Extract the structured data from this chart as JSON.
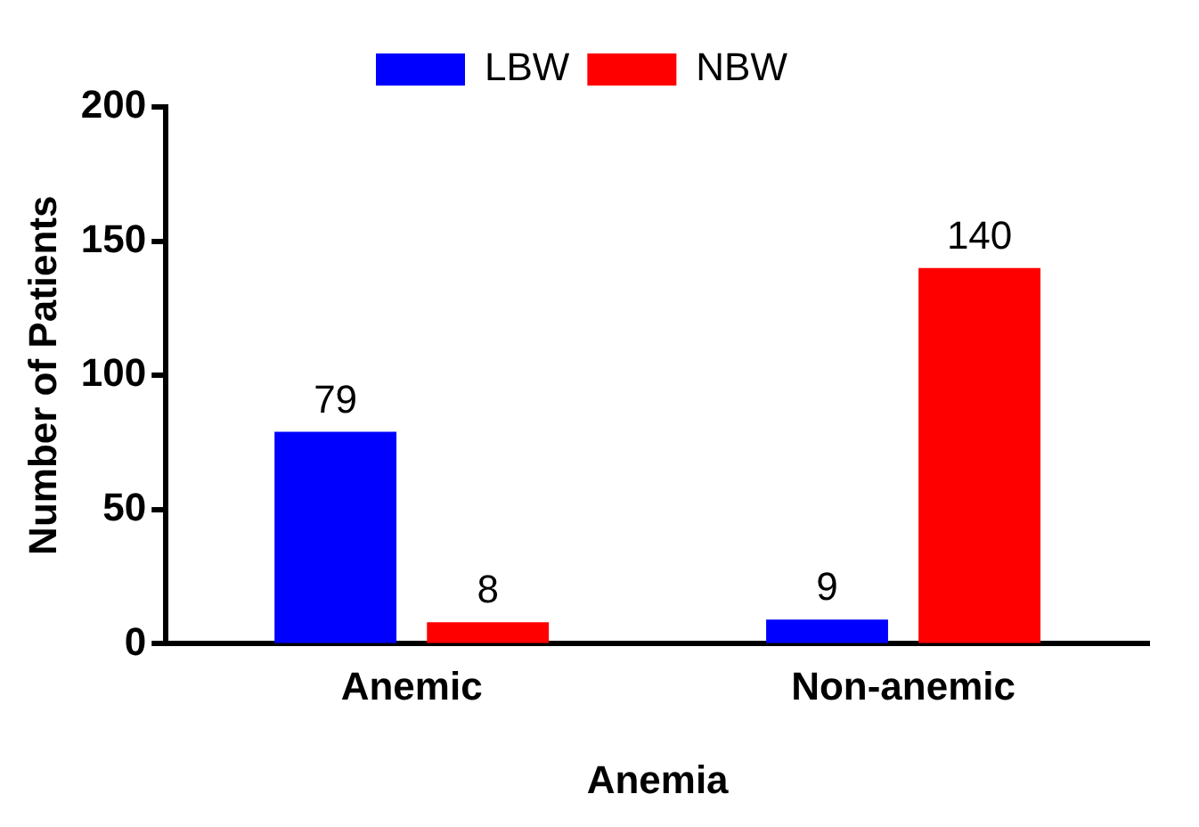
{
  "chart_data": {
    "type": "bar",
    "xlabel": "Anemia",
    "ylabel": "Number of Patients",
    "categories": [
      "Anemic",
      "Non-anemic"
    ],
    "series": [
      {
        "name": "LBW",
        "color": "#0000ff",
        "values": [
          79,
          9
        ]
      },
      {
        "name": "NBW",
        "color": "#ff0000",
        "values": [
          8,
          140
        ]
      }
    ],
    "ylim": [
      0,
      200
    ],
    "yticks": [
      0,
      50,
      100,
      150,
      200
    ],
    "grid": false,
    "legend": "top",
    "data_labels": true
  }
}
